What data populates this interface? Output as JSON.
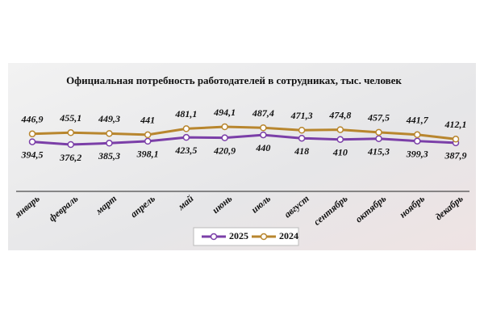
{
  "chart_data": {
    "type": "line",
    "title": "Официальная потребность работодателей  в сотрудниках, тыс. человек",
    "categories": [
      "январь",
      "февраль",
      "март",
      "апрель",
      "май",
      "июнь",
      "июль",
      "август",
      "сентябрь",
      "октябрь",
      "ноябрь",
      "декабрь"
    ],
    "series": [
      {
        "name": "2025",
        "color": "#7b3fa8",
        "values": [
          394.5,
          376.2,
          385.3,
          398.1,
          423.5,
          420.9,
          440,
          418,
          410,
          415.3,
          399.3,
          387.9
        ],
        "value_labels": [
          "394,5",
          "376,2",
          "385,3",
          "398,1",
          "423,5",
          "420,9",
          "440",
          "418",
          "410",
          "415,3",
          "399,3",
          "387,9"
        ]
      },
      {
        "name": "2024",
        "color": "#b8862e",
        "values": [
          446.9,
          455.1,
          449.3,
          441,
          481.1,
          494.1,
          487.4,
          471.3,
          474.8,
          457.5,
          441.7,
          412.1
        ],
        "value_labels": [
          "446,9",
          "455,1",
          "449,3",
          "441",
          "481,1",
          "494,1",
          "487,4",
          "471,3",
          "474,8",
          "457,5",
          "441,7",
          "412,1"
        ]
      }
    ]
  }
}
